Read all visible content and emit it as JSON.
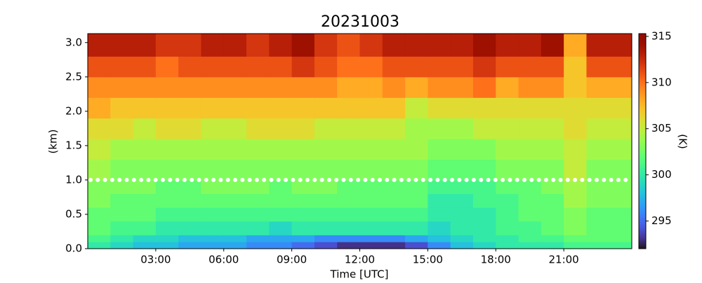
{
  "chart_data": {
    "type": "heatmap",
    "title": "20231003",
    "xlabel": "Time [UTC]",
    "ylabel": "(km)",
    "colorbar_label": "(K)",
    "colormap": "turbo",
    "x_edges": [
      0,
      1,
      2,
      3,
      4,
      5,
      6,
      7,
      8,
      9,
      10,
      11,
      12,
      13,
      14,
      15,
      16,
      17,
      18,
      19,
      20,
      21,
      22,
      23,
      24
    ],
    "y_edges": [
      0,
      0.1,
      0.2,
      0.4,
      0.6,
      0.8,
      1.0,
      1.3,
      1.6,
      1.9,
      2.2,
      2.5,
      2.8,
      3.13
    ],
    "values": [
      [
        300,
        299,
        298,
        298,
        297,
        297,
        297,
        296,
        296,
        295,
        294,
        293,
        293,
        293,
        294,
        296,
        298,
        299,
        300,
        300,
        300,
        301,
        301,
        301
      ],
      [
        301,
        300,
        299,
        299,
        298,
        298,
        298,
        297,
        297,
        297,
        296,
        296,
        296,
        296,
        297,
        298,
        299,
        300,
        300,
        301,
        301,
        302,
        302,
        302
      ],
      [
        302,
        301,
        301,
        300,
        300,
        300,
        300,
        300,
        299,
        300,
        300,
        300,
        300,
        300,
        300,
        299,
        300,
        300,
        301,
        301,
        302,
        303,
        302,
        302
      ],
      [
        302,
        302,
        302,
        301,
        301,
        301,
        301,
        301,
        301,
        301,
        301,
        301,
        301,
        301,
        301,
        300,
        300,
        300,
        301,
        302,
        302,
        303,
        302,
        302
      ],
      [
        303,
        302,
        302,
        302,
        302,
        302,
        302,
        302,
        302,
        302,
        302,
        302,
        302,
        302,
        302,
        300,
        300,
        301,
        301,
        302,
        302,
        304,
        303,
        303
      ],
      [
        303,
        303,
        303,
        302,
        302,
        303,
        303,
        303,
        302,
        303,
        303,
        302,
        302,
        302,
        302,
        301,
        301,
        301,
        302,
        302,
        303,
        304,
        303,
        303
      ],
      [
        304,
        303,
        303,
        303,
        303,
        303,
        303,
        303,
        303,
        303,
        303,
        303,
        303,
        303,
        303,
        302,
        302,
        302,
        303,
        303,
        303,
        305,
        303,
        303
      ],
      [
        305,
        304,
        304,
        304,
        304,
        304,
        304,
        304,
        304,
        304,
        304,
        304,
        304,
        304,
        304,
        303,
        303,
        303,
        304,
        304,
        304,
        305,
        304,
        304
      ],
      [
        306,
        306,
        305,
        306,
        306,
        305,
        305,
        306,
        306,
        306,
        305,
        305,
        305,
        305,
        304,
        304,
        304,
        305,
        305,
        305,
        305,
        306,
        305,
        305
      ],
      [
        308,
        307,
        307,
        307,
        307,
        307,
        307,
        307,
        307,
        307,
        307,
        307,
        307,
        307,
        305,
        306,
        306,
        306,
        306,
        306,
        306,
        306,
        306,
        306
      ],
      [
        309,
        309,
        309,
        309,
        309,
        309,
        309,
        309,
        309,
        309,
        309,
        308,
        308,
        309,
        308,
        309,
        309,
        310,
        308,
        309,
        309,
        307,
        308,
        308
      ],
      [
        311,
        311,
        311,
        310,
        311,
        311,
        311,
        311,
        311,
        312,
        311,
        310,
        310,
        311,
        311,
        311,
        311,
        312,
        311,
        311,
        311,
        307,
        311,
        311
      ],
      [
        313,
        313,
        313,
        312,
        312,
        313,
        313,
        312,
        313,
        314,
        312,
        311,
        312,
        313,
        313,
        313,
        313,
        314,
        313,
        313,
        314,
        308,
        313,
        313
      ]
    ],
    "xlim": [
      0,
      24
    ],
    "ylim": [
      0,
      3.13
    ],
    "xticks": [
      {
        "value": 3,
        "label": "03:00"
      },
      {
        "value": 6,
        "label": "06:00"
      },
      {
        "value": 9,
        "label": "09:00"
      },
      {
        "value": 12,
        "label": "12:00"
      },
      {
        "value": 15,
        "label": "15:00"
      },
      {
        "value": 18,
        "label": "18:00"
      },
      {
        "value": 21,
        "label": "21:00"
      }
    ],
    "yticks": [
      {
        "value": 0,
        "label": "0.0"
      },
      0.5,
      {
        "value": 1,
        "label": "1.0"
      },
      1.5,
      {
        "value": 2,
        "label": "2.0"
      },
      2.5,
      {
        "value": 3,
        "label": "3.0"
      }
    ],
    "clim": [
      292,
      315.3
    ],
    "cticks": [
      295,
      300,
      305,
      310,
      315
    ],
    "hline": 1.0,
    "hline_color": "#ffffff"
  }
}
